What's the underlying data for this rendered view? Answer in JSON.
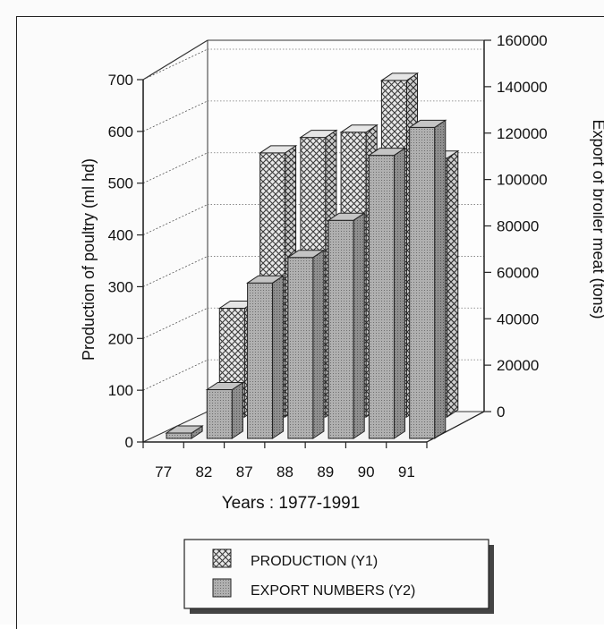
{
  "chart_data": {
    "type": "bar",
    "title": "",
    "categories": [
      "77",
      "82",
      "87",
      "88",
      "89",
      "90",
      "91"
    ],
    "series": [
      {
        "name": "PRODUCTION (Y1)",
        "axis": "left",
        "values": [
          0,
          210,
          510,
          540,
          550,
          650,
          500
        ]
      },
      {
        "name": "EXPORT NUMBERS (Y2)",
        "axis": "right",
        "values": [
          2000,
          21000,
          67000,
          78000,
          94000,
          122000,
          134000
        ]
      }
    ],
    "xlabel": "Years : 1977-1991",
    "ylabel": "Production of poultry (ml hd)",
    "y2label": "Export of broiler meat (tons)",
    "ylim": [
      0,
      700
    ],
    "y2lim": [
      0,
      160000
    ],
    "yticks": [
      "0",
      "100",
      "200",
      "300",
      "400",
      "500",
      "600",
      "700"
    ],
    "y2ticks": [
      "0",
      "20000",
      "40000",
      "60000",
      "80000",
      "100000",
      "120000",
      "140000",
      "160000"
    ],
    "legend_position": "bottom-center",
    "grid": true,
    "colors": {
      "production_fill": "#e3e3e3",
      "production_pattern": "#3a3a3a",
      "export_fill": "#a9a9a9",
      "export_side": "#8a8a8a"
    }
  }
}
